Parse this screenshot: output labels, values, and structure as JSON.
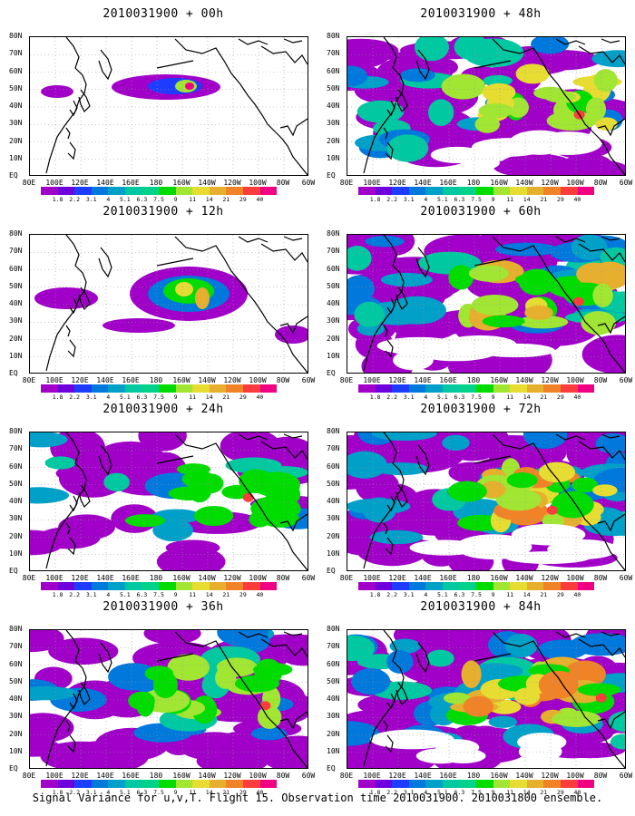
{
  "panels": [
    {
      "title": "2010031900 + 00h",
      "intensity": 0
    },
    {
      "title": "2010031900 + 12h",
      "intensity": 1
    },
    {
      "title": "2010031900 + 24h",
      "intensity": 2
    },
    {
      "title": "2010031900 + 36h",
      "intensity": 3
    },
    {
      "title": "2010031900 + 48h",
      "intensity": 4
    },
    {
      "title": "2010031900 + 60h",
      "intensity": 5
    },
    {
      "title": "2010031900 + 72h",
      "intensity": 6
    },
    {
      "title": "2010031900 + 84h",
      "intensity": 6
    }
  ],
  "x_labels": [
    "80E",
    "100E",
    "120E",
    "140E",
    "160E",
    "180",
    "160W",
    "140W",
    "120W",
    "100W",
    "80W",
    "60W"
  ],
  "y_labels": [
    "80N",
    "70N",
    "60N",
    "50N",
    "40N",
    "30N",
    "20N",
    "10N",
    "EQ"
  ],
  "colorbar": {
    "labels": [
      "1.8",
      "2.2",
      "3.1",
      "4",
      "5.1",
      "6.3",
      "7.5",
      "9",
      "11",
      "14",
      "21",
      "29",
      "40"
    ],
    "colors": [
      "#a000c8",
      "#6e00dc",
      "#1e3cff",
      "#0078dc",
      "#00a0c8",
      "#00c8a0",
      "#00d28c",
      "#00dc00",
      "#a0e632",
      "#e6dc32",
      "#e6af2d",
      "#f08228",
      "#fa3c3c",
      "#f00082"
    ]
  },
  "caption": "Signal Variance for u,v,T. Flight 15. Observation time 2010031900. 2010031800 ensemble."
}
